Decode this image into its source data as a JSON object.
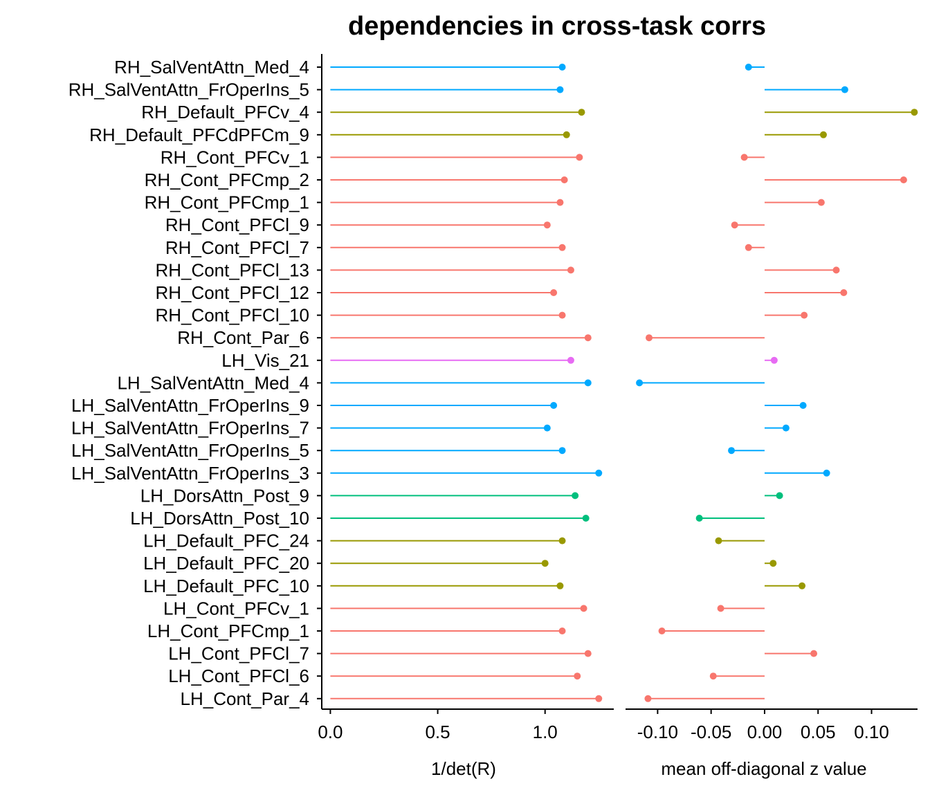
{
  "chart_data": {
    "title": "dependencies in cross-task corrs",
    "type": "lollipop",
    "categories": [
      "RH_SalVentAttn_Med_4",
      "RH_SalVentAttn_FrOperIns_5",
      "RH_Default_PFCv_4",
      "RH_Default_PFCdPFCm_9",
      "RH_Cont_PFCv_1",
      "RH_Cont_PFCmp_2",
      "RH_Cont_PFCmp_1",
      "RH_Cont_PFCl_9",
      "RH_Cont_PFCl_7",
      "RH_Cont_PFCl_13",
      "RH_Cont_PFCl_12",
      "RH_Cont_PFCl_10",
      "RH_Cont_Par_6",
      "LH_Vis_21",
      "LH_SalVentAttn_Med_4",
      "LH_SalVentAttn_FrOperIns_9",
      "LH_SalVentAttn_FrOperIns_7",
      "LH_SalVentAttn_FrOperIns_5",
      "LH_SalVentAttn_FrOperIns_3",
      "LH_DorsAttn_Post_9",
      "LH_DorsAttn_Post_10",
      "LH_Default_PFC_24",
      "LH_Default_PFC_20",
      "LH_Default_PFC_10",
      "LH_Cont_PFCv_1",
      "LH_Cont_PFCmp_1",
      "LH_Cont_PFCl_7",
      "LH_Cont_PFCl_6",
      "LH_Cont_Par_4"
    ],
    "network_colors": {
      "SalVentAttn": "#00A9FF",
      "Default": "#999900",
      "Cont": "#F8766D",
      "Vis": "#E76BF3",
      "DorsAttn": "#00BF7D"
    },
    "panels": [
      {
        "xlabel": "1/det(R)",
        "xlim": [
          -0.04,
          1.32
        ],
        "ticks": [
          0.0,
          0.5,
          1.0
        ],
        "tick_labels": [
          "0.0",
          "0.5",
          "1.0"
        ],
        "baseline": 0,
        "values": [
          1.08,
          1.07,
          1.17,
          1.1,
          1.16,
          1.09,
          1.07,
          1.01,
          1.08,
          1.12,
          1.04,
          1.08,
          1.2,
          1.12,
          1.2,
          1.04,
          1.01,
          1.08,
          1.25,
          1.14,
          1.19,
          1.08,
          1.0,
          1.07,
          1.18,
          1.08,
          1.2,
          1.15,
          1.25
        ]
      },
      {
        "xlabel": "mean off-diagonal z value",
        "xlim": [
          -0.13,
          0.143
        ],
        "ticks": [
          -0.1,
          -0.05,
          0.0,
          0.05,
          0.1
        ],
        "tick_labels": [
          "-0.10",
          "-0.05",
          "0.00",
          "0.05",
          "0.10"
        ],
        "baseline": 0,
        "values": [
          -0.015,
          0.075,
          0.14,
          0.055,
          -0.019,
          0.13,
          0.053,
          -0.028,
          -0.015,
          0.067,
          0.074,
          0.037,
          -0.108,
          0.009,
          -0.117,
          0.036,
          0.02,
          -0.031,
          0.058,
          0.014,
          -0.061,
          -0.043,
          0.008,
          0.035,
          -0.041,
          -0.096,
          0.046,
          -0.048,
          -0.109
        ]
      }
    ]
  }
}
